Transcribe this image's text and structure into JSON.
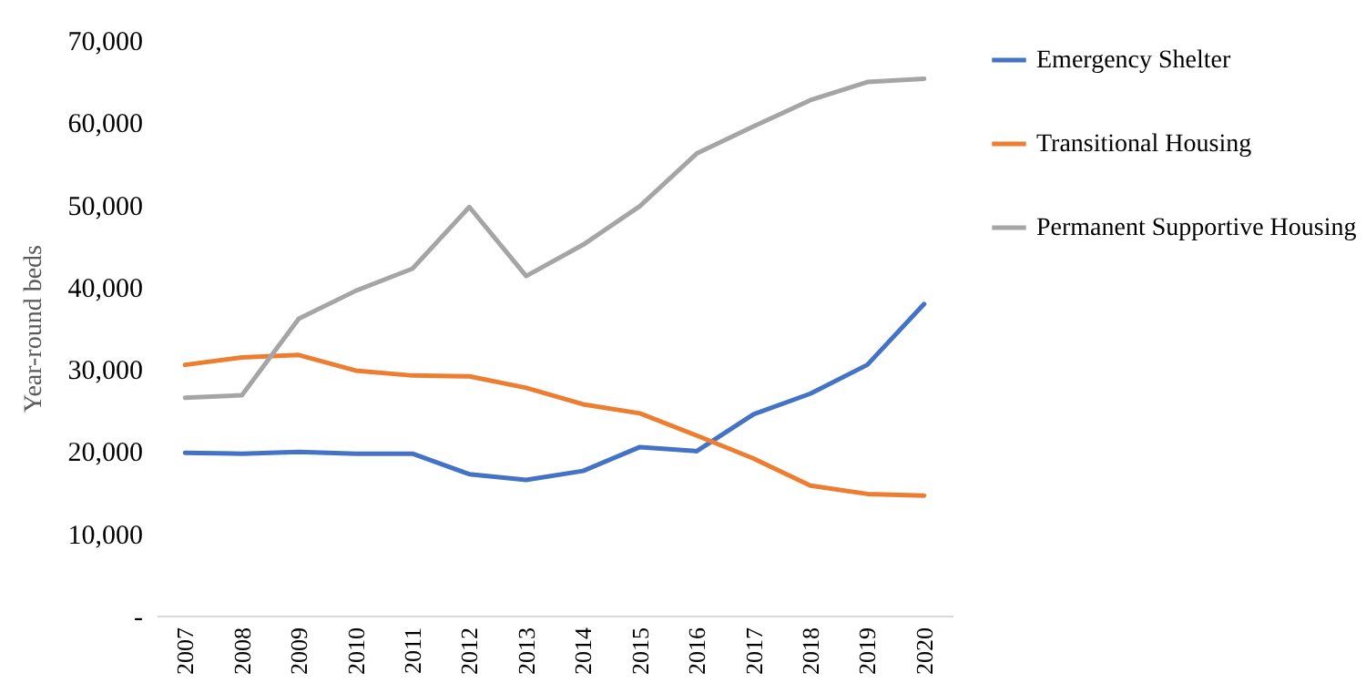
{
  "chart_data": {
    "type": "line",
    "ylabel": "Year-round beds",
    "categories": [
      "2007",
      "2008",
      "2009",
      "2010",
      "2011",
      "2012",
      "2013",
      "2014",
      "2015",
      "2016",
      "2017",
      "2018",
      "2019",
      "2020"
    ],
    "series": [
      {
        "name": "Emergency Shelter",
        "color": "#4472c4",
        "values": [
          19800,
          19700,
          19900,
          19700,
          19700,
          17200,
          16500,
          17600,
          20500,
          20000,
          24500,
          27000,
          30500,
          37900
        ]
      },
      {
        "name": "Transitional Housing",
        "color": "#ed7d31",
        "values": [
          30500,
          31400,
          31700,
          29800,
          29200,
          29100,
          27700,
          25700,
          24600,
          21900,
          19100,
          15800,
          14800,
          14600
        ]
      },
      {
        "name": "Permanent Supportive Housing",
        "color": "#a5a5a5",
        "values": [
          26500,
          26800,
          36100,
          39500,
          42200,
          49700,
          41300,
          45100,
          49800,
          56200,
          59500,
          62700,
          64900,
          65300
        ]
      }
    ],
    "ylim": [
      0,
      70000
    ],
    "yticks": [
      {
        "value": 0,
        "label": "-"
      },
      {
        "value": 10000,
        "label": "10,000"
      },
      {
        "value": 20000,
        "label": "20,000"
      },
      {
        "value": 30000,
        "label": "30,000"
      },
      {
        "value": 40000,
        "label": "40,000"
      },
      {
        "value": 50000,
        "label": "50,000"
      },
      {
        "value": 60000,
        "label": "60,000"
      },
      {
        "value": 70000,
        "label": "70,000"
      }
    ],
    "grid": false,
    "legend": "right"
  }
}
